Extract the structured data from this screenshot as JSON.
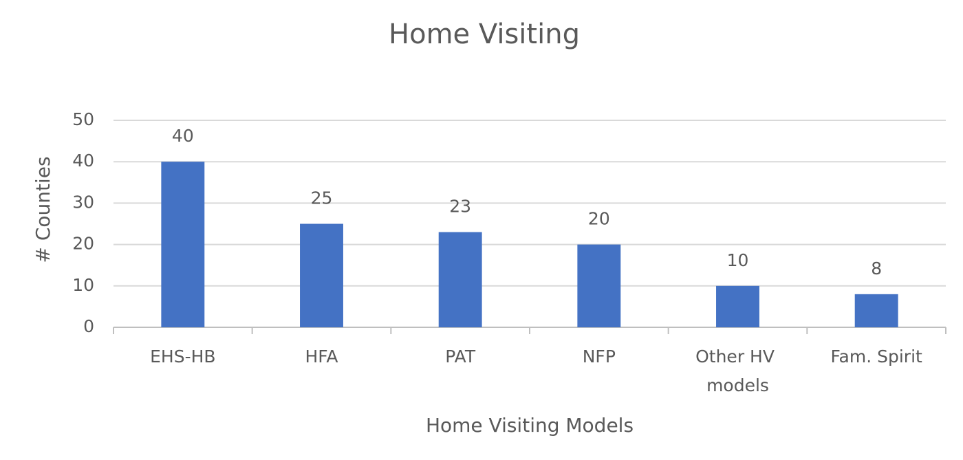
{
  "chart_data": {
    "type": "bar",
    "title": "Home Visiting",
    "x_label": "Home Visiting Models",
    "y_label": "# Counties",
    "categories": [
      "EHS-HB",
      "HFA",
      "PAT",
      "NFP",
      "Other HV models",
      "Fam. Spirit"
    ],
    "values": [
      40,
      25,
      23,
      20,
      10,
      8
    ],
    "color": "#4472c4",
    "ylim": [
      0,
      50
    ],
    "yticks": [
      0,
      10,
      20,
      30,
      40,
      50
    ],
    "grid": true
  }
}
